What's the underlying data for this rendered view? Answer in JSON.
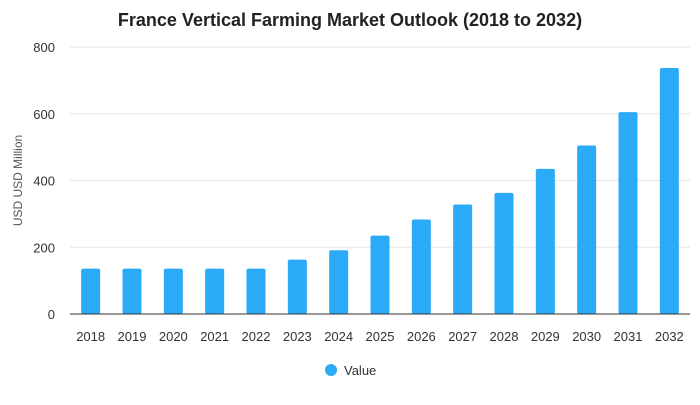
{
  "chart_data": {
    "type": "bar",
    "title": "France Vertical Farming Market Outlook (2018 to 2032)",
    "xlabel": "",
    "ylabel": "USD USD Million",
    "categories": [
      "2018",
      "2019",
      "2020",
      "2021",
      "2022",
      "2023",
      "2024",
      "2025",
      "2026",
      "2027",
      "2028",
      "2029",
      "2030",
      "2031",
      "2032"
    ],
    "series": [
      {
        "name": "Value",
        "values": [
          136,
          136,
          136,
          136,
          136,
          163,
          191,
          235,
          283,
          328,
          363,
          435,
          505,
          605,
          737
        ]
      }
    ],
    "ylim": [
      0,
      800
    ],
    "yticks": [
      0,
      200,
      400,
      600,
      800
    ],
    "grid": true,
    "legend_position": "bottom",
    "colors": {
      "bar": "#2aaaf7",
      "grid": "#e6e6e6",
      "axis": "#333333"
    }
  }
}
